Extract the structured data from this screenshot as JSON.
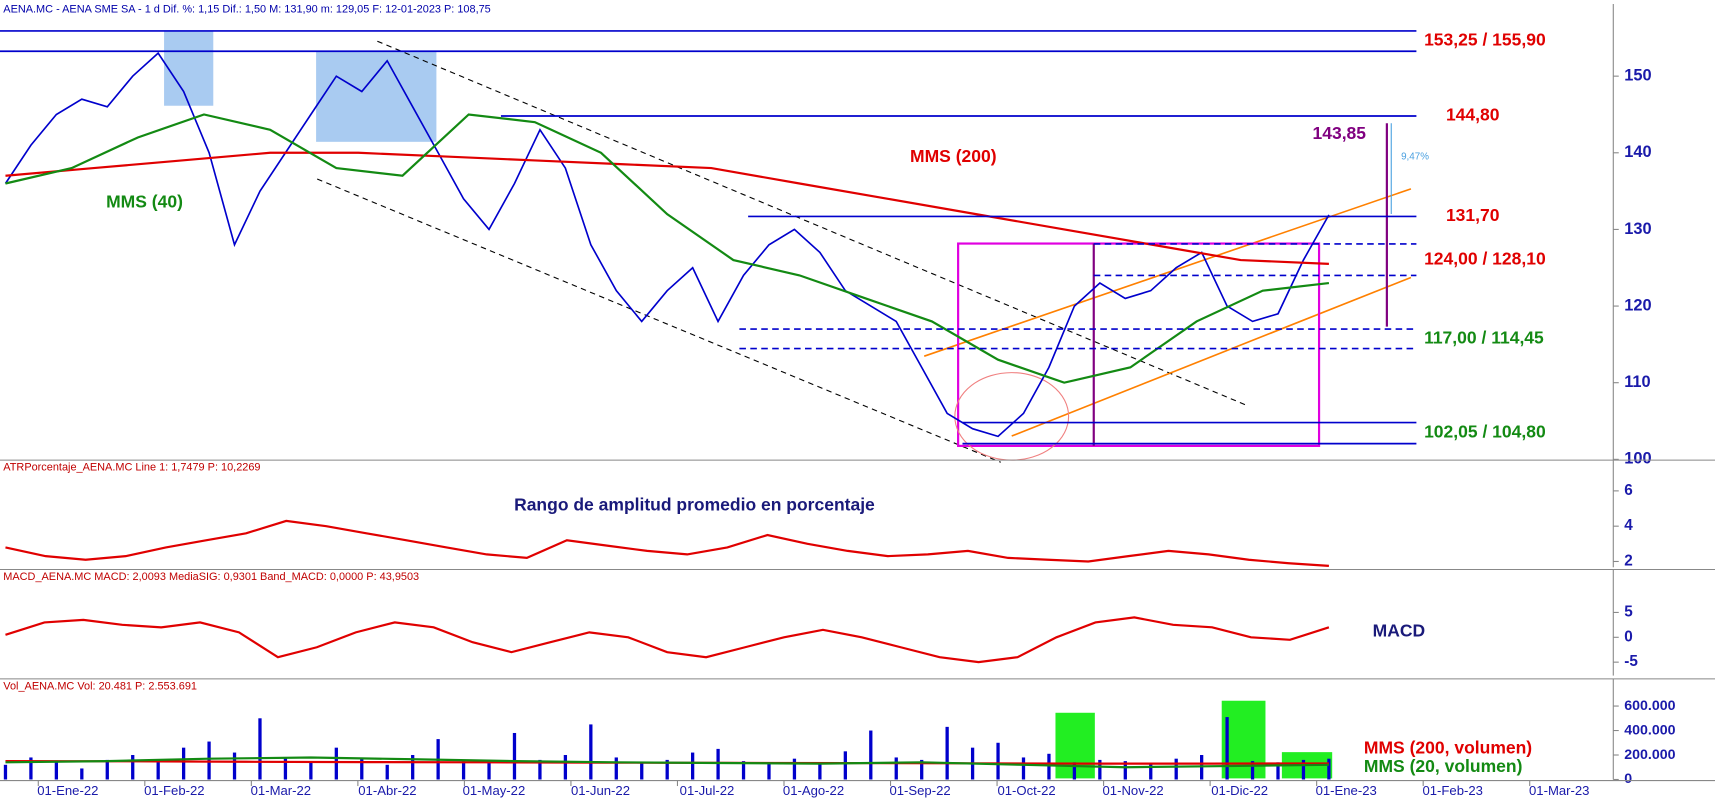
{
  "header": "AENA.MC - AENA SME SA - 1 d  Dif. %: 1,15  Dif.: 1,50  M: 131,90  m: 129,05  F: 12-01-2023  P: 108,75",
  "x_axis": {
    "labels": [
      "01-Ene-22",
      "01-Feb-22",
      "01-Mar-22",
      "01-Abr-22",
      "01-May-22",
      "01-Jun-22",
      "01-Jul-22",
      "01-Ago-22",
      "01-Sep-22",
      "01-Oct-22",
      "01-Nov-22",
      "01-Dic-22",
      "01-Ene-23",
      "01-Feb-23",
      "01-Mar-23"
    ]
  },
  "chart_data": [
    {
      "type": "line",
      "ylim": [
        99.9,
        157.7
      ],
      "yticks": [
        100,
        110,
        120,
        130,
        140,
        150
      ],
      "series": [
        {
          "name": "AENA.MC",
          "color": "#0000cc",
          "values": [
            136,
            141,
            145,
            147,
            146,
            150,
            153,
            148,
            140,
            128,
            135,
            140,
            145,
            150,
            148,
            152,
            146,
            140,
            134,
            130,
            136,
            143,
            138,
            128,
            122,
            118,
            122,
            125,
            118,
            124,
            128,
            130,
            127,
            122,
            120,
            118,
            112,
            106,
            104,
            103,
            106,
            112,
            120,
            123,
            121,
            122,
            125,
            127,
            120,
            118,
            119,
            126,
            131.9
          ]
        },
        {
          "name": "MMS (200)",
          "color": "#e00000",
          "values": [
            137,
            138,
            139,
            140,
            140,
            139.5,
            139,
            138.5,
            138,
            136,
            134,
            132,
            130,
            128,
            126,
            125.5
          ]
        },
        {
          "name": "MMS (40)",
          "color": "#138a13",
          "values": [
            136,
            138,
            142,
            145,
            143,
            138,
            137,
            145,
            144,
            140,
            132,
            126,
            124,
            121,
            118,
            113,
            110,
            112,
            118,
            122,
            123
          ]
        }
      ],
      "levels": [
        {
          "label": "153,25 / 155,90",
          "values": [
            153.25,
            155.9
          ],
          "color": "#e00000"
        },
        {
          "label": "144,80",
          "values": [
            144.8
          ],
          "color": "#e00000"
        },
        {
          "label": "131,70",
          "values": [
            131.7
          ],
          "color": "#e00000"
        },
        {
          "label": "124,00 / 128,10",
          "values": [
            124,
            128.1
          ],
          "color": "#e00000"
        },
        {
          "label": "117,00 / 114,45",
          "values": [
            117,
            114.45
          ],
          "color": "#138a13"
        },
        {
          "label": "102,05 / 104,80",
          "values": [
            102.05,
            104.8
          ],
          "color": "#138a13"
        }
      ],
      "annotations": [
        "143,85",
        "9,47%"
      ]
    },
    {
      "type": "line",
      "title": "ATRPorcentaje_AENA.MC  Line 1: 1,7479  P: 10,2269",
      "subtitle": "Rango de amplitud promedio en porcentaje",
      "ylim": [
        1.67,
        7
      ],
      "yticks": [
        2,
        4,
        6
      ],
      "series": [
        {
          "color": "#e00000",
          "values": [
            2.8,
            2.3,
            2.1,
            2.3,
            2.8,
            3.2,
            3.6,
            4.3,
            4.0,
            3.6,
            3.2,
            2.8,
            2.4,
            2.2,
            3.2,
            2.9,
            2.6,
            2.4,
            2.8,
            3.5,
            3.0,
            2.6,
            2.3,
            2.4,
            2.6,
            2.2,
            2.1,
            2.0,
            2.3,
            2.6,
            2.4,
            2.1,
            1.9,
            1.75
          ]
        }
      ]
    },
    {
      "type": "line",
      "title": "MACD_AENA.MC  MACD: 2,0093  MediaSIG: 0,9301  Band_MACD: 0,0000  P: 43,9503",
      "subtitle": "MACD",
      "ylim": [
        -7.7,
        11
      ],
      "yticks": [
        5,
        0,
        -5
      ],
      "series": [
        {
          "color": "#e00000",
          "values": [
            0.5,
            3,
            3.5,
            2.5,
            2,
            3,
            1,
            -4,
            -2,
            1,
            3,
            2,
            -1,
            -3,
            -1,
            1,
            0,
            -3,
            -4,
            -2,
            0,
            1.5,
            0,
            -2,
            -4,
            -5,
            -4,
            0,
            3,
            4,
            2.5,
            2,
            0,
            -0.5,
            2
          ]
        }
      ]
    },
    {
      "type": "bar",
      "title": "Vol_AENA.MC  Vol: 20.481  P: 2.553.691",
      "ylim": [
        0,
        715000
      ],
      "yticks": [
        0,
        {
          "value": 200000,
          "label": "200.000"
        },
        {
          "value": 400000,
          "label": "400.000"
        },
        {
          "value": 600000,
          "label": "600.000"
        }
      ],
      "color": "#0000cc",
      "values": [
        120000,
        180000,
        150000,
        90000,
        160000,
        200000,
        140000,
        260000,
        310000,
        220000,
        500000,
        180000,
        150000,
        260000,
        170000,
        120000,
        200000,
        330000,
        150000,
        140000,
        380000,
        160000,
        200000,
        450000,
        180000,
        140000,
        160000,
        220000,
        250000,
        150000,
        130000,
        170000,
        140000,
        230000,
        400000,
        180000,
        160000,
        430000,
        260000,
        300000,
        180000,
        210000,
        140000,
        160000,
        150000,
        130000,
        170000,
        200000,
        510000,
        150000,
        140000,
        160000,
        170000
      ],
      "series": [
        {
          "name": "MMS (200, volumen)",
          "color": "#e00000",
          "values": [
            150000,
            148000,
            145000,
            142000,
            140000,
            138000,
            136000,
            134000,
            132000,
            130000,
            130000,
            131000
          ]
        },
        {
          "name": "MMS (20, volumen)",
          "color": "#138a13",
          "values": [
            140000,
            150000,
            170000,
            180000,
            165000,
            150000,
            140000,
            135000,
            130000,
            140000,
            120000,
            100000,
            110000,
            120000
          ]
        }
      ]
    }
  ]
}
